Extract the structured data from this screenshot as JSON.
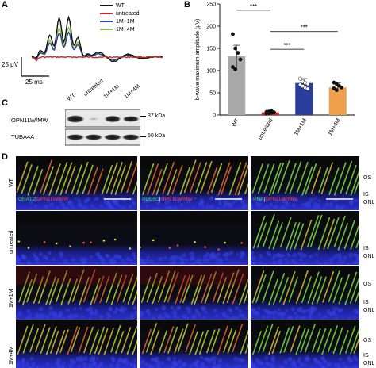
{
  "panel_letters": {
    "a": "A",
    "b": "B",
    "c": "C",
    "d": "D"
  },
  "panel_a": {
    "legend": [
      {
        "name": "WT",
        "color": "#111111"
      },
      {
        "name": "untreated",
        "color": "#d62020"
      },
      {
        "name": "1M+1M",
        "color": "#2b3d9a"
      },
      {
        "name": "1M+4M",
        "color": "#8cc63f"
      }
    ],
    "scale_amplitude": "25 μV",
    "scale_time": "25 ms"
  },
  "chart_data": {
    "type": "bar",
    "categories": [
      "WT",
      "untreated",
      "1M+1M",
      "1M+4M"
    ],
    "values": [
      132,
      6,
      72,
      62
    ],
    "errors": [
      25,
      2,
      10,
      10
    ],
    "points": [
      [
        182,
        150,
        140,
        125,
        108,
        103
      ],
      [
        3,
        4,
        5,
        6,
        7,
        8,
        9
      ],
      [
        82,
        75,
        72,
        70,
        68,
        65,
        61,
        59
      ],
      [
        73,
        70,
        66,
        62,
        60,
        56
      ]
    ],
    "colors": [
      "#a8a8a8",
      "#d62020",
      "#2b3d9a",
      "#f0a04b"
    ],
    "ylabel": "b-wave maximum amplitude (μV)",
    "ylim": [
      0,
      250
    ],
    "yticks": [
      "0",
      "50",
      "100",
      "150",
      "200",
      "250"
    ],
    "significance": [
      "***",
      "***",
      "***"
    ]
  },
  "panel_c": {
    "lanes": [
      "WT",
      "untreated",
      "1M+1M",
      "1M+4M"
    ],
    "rows": [
      {
        "label": "OPN1LW/MW",
        "marker": "37 kDa"
      },
      {
        "label": "TUBA4A",
        "marker": "50 kDa"
      }
    ]
  },
  "panel_d": {
    "row_labels": [
      "WT",
      "untreated",
      "1M+1M",
      "1M+4M"
    ],
    "layer_labels": [
      "OS",
      "IS",
      "ONL"
    ],
    "stain_labels": [
      {
        "green": "GNAT2",
        "sep": "|",
        "red": "OPN1LW/MW"
      },
      {
        "green": "PDE6C",
        "sep": "|",
        "red": "OPN1LW/MW"
      },
      {
        "green": "PNA",
        "sep": "|",
        "red": "OPN1LW/MW"
      }
    ]
  }
}
